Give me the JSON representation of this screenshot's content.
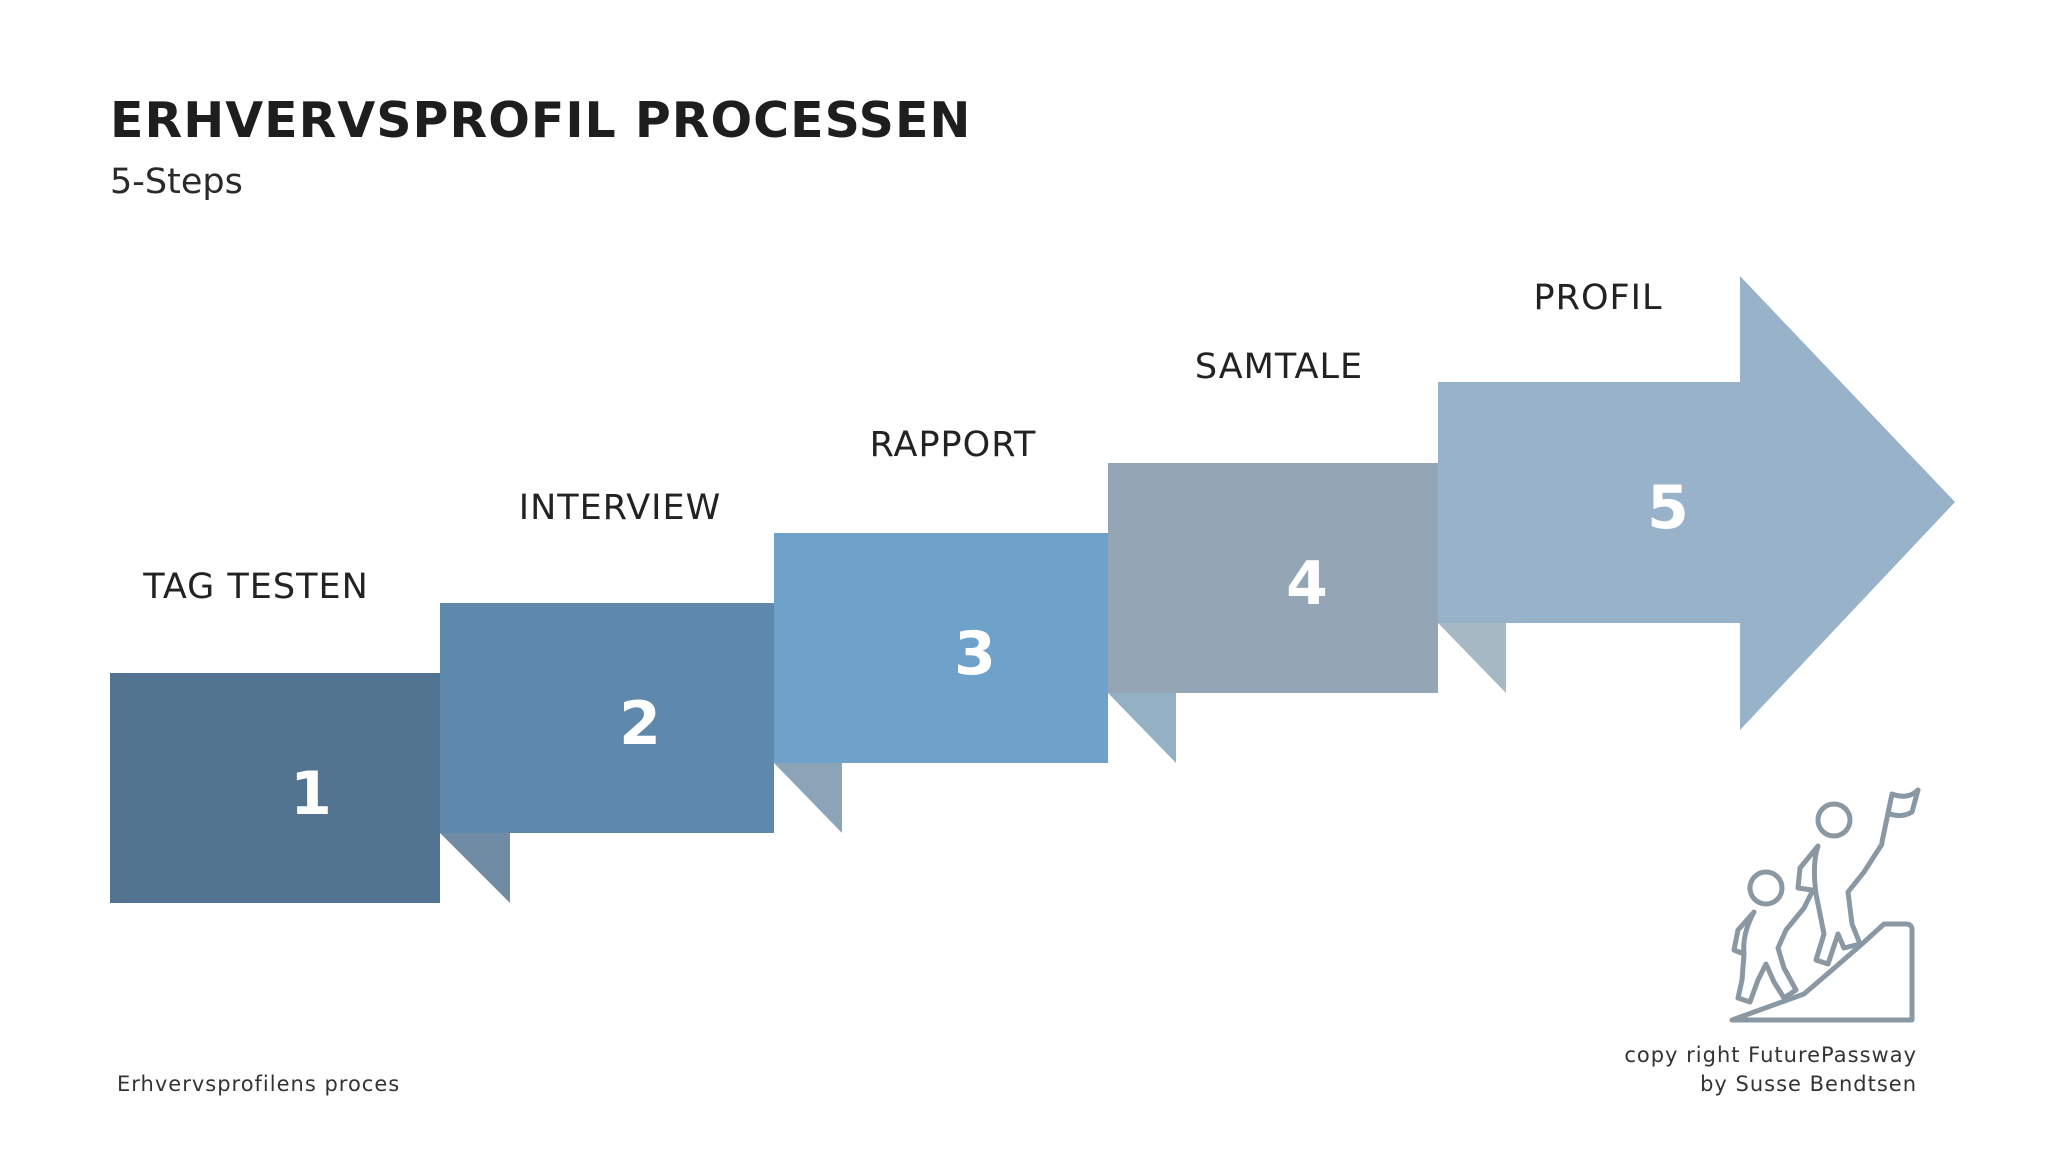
{
  "header": {
    "title": "ERHVERVSPROFIL PROCESSEN",
    "subtitle": "5-Steps"
  },
  "steps": [
    {
      "number": "1",
      "label": "TAG TESTEN",
      "color": "#527491"
    },
    {
      "number": "2",
      "label": "INTERVIEW",
      "color": "#5e89ad"
    },
    {
      "number": "3",
      "label": "RAPPORT",
      "color": "#6fa2ca"
    },
    {
      "number": "4",
      "label": "SAMTALE",
      "color": "#94a6b5"
    },
    {
      "number": "5",
      "label": "PROFIL",
      "color": "#98b3c9"
    }
  ],
  "fold_colors": [
    "#6f8ca4",
    "#8ba4b8",
    "#93b0c4",
    "#a5b8c4"
  ],
  "icon": {
    "name": "climbing-people-icon",
    "color": "#8a98a4"
  },
  "footer": {
    "left": "Erhvervsprofilens proces",
    "right_line1": "copy right FuturePassway",
    "right_line2": "by Susse Bendtsen"
  }
}
